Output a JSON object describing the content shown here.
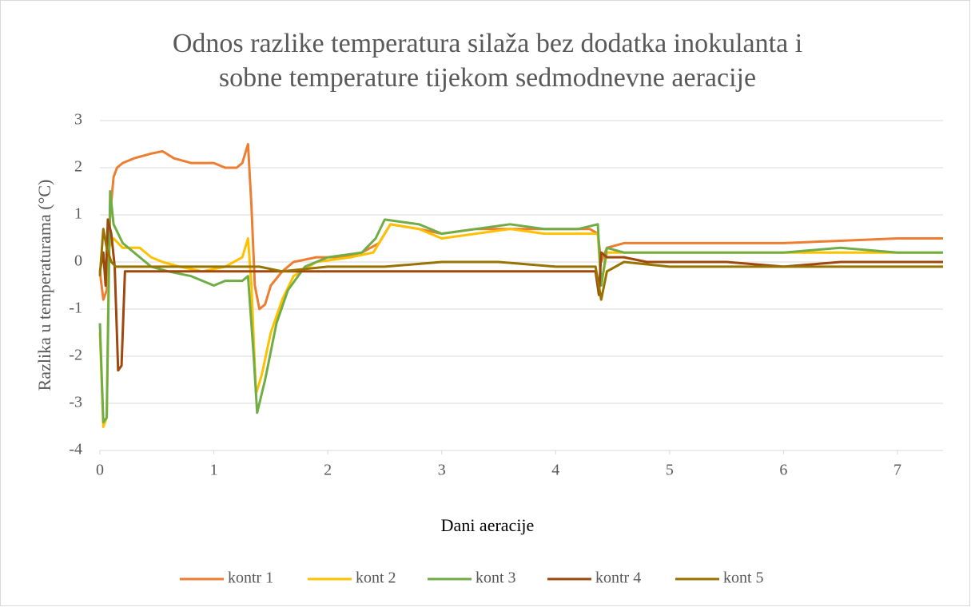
{
  "chart_data": {
    "type": "line",
    "title": [
      "Odnos razlike temperatura silaža bez dodatka inokulanta i",
      "sobne temperature tijekom sedmodnevne aeracije"
    ],
    "x_label": "Dani aeracije",
    "y_label": "Razlika u temperaturama (°C)",
    "xlim": [
      0,
      7.4
    ],
    "xticks": [
      0,
      1,
      2,
      3,
      4,
      5,
      6,
      7
    ],
    "ylim": [
      -4,
      3
    ],
    "yticks": [
      -4,
      -3,
      -2,
      -1,
      0,
      1,
      2,
      3
    ],
    "grid": true,
    "legend": "bottom",
    "series": [
      {
        "name": "kontr 1",
        "color": "#ed7d31",
        "x": [
          0,
          0.03,
          0.06,
          0.09,
          0.12,
          0.15,
          0.2,
          0.3,
          0.45,
          0.55,
          0.65,
          0.8,
          1.0,
          1.1,
          1.2,
          1.25,
          1.3,
          1.33,
          1.36,
          1.4,
          1.45,
          1.5,
          1.6,
          1.7,
          1.9,
          2.1,
          2.3,
          2.45,
          2.55,
          2.8,
          3.0,
          3.3,
          3.6,
          3.9,
          4.1,
          4.3,
          4.37,
          4.4,
          4.45,
          4.6,
          5.0,
          5.5,
          6.0,
          6.5,
          7.0,
          7.4
        ],
        "values": [
          -0.2,
          -0.8,
          -0.6,
          1.0,
          1.8,
          2.0,
          2.1,
          2.2,
          2.3,
          2.35,
          2.2,
          2.1,
          2.1,
          2.0,
          2.0,
          2.1,
          2.5,
          1.2,
          -0.5,
          -1.0,
          -0.9,
          -0.5,
          -0.2,
          0.0,
          0.1,
          0.1,
          0.2,
          0.4,
          0.8,
          0.7,
          0.6,
          0.7,
          0.7,
          0.7,
          0.7,
          0.7,
          0.6,
          0.0,
          0.3,
          0.4,
          0.4,
          0.4,
          0.4,
          0.45,
          0.5,
          0.5
        ]
      },
      {
        "name": "kont 2",
        "color": "#ffc000",
        "x": [
          0,
          0.03,
          0.06,
          0.08,
          0.12,
          0.2,
          0.35,
          0.45,
          0.55,
          0.7,
          0.9,
          1.1,
          1.25,
          1.3,
          1.33,
          1.37,
          1.42,
          1.5,
          1.6,
          1.7,
          1.9,
          2.2,
          2.4,
          2.55,
          2.8,
          3.0,
          3.3,
          3.6,
          3.9,
          4.2,
          4.37,
          4.4,
          4.45,
          4.6,
          5.5,
          6.5,
          7.4
        ],
        "values": [
          -1.5,
          -3.5,
          -3.3,
          0.3,
          0.5,
          0.3,
          0.3,
          0.1,
          0,
          -0.1,
          -0.2,
          -0.1,
          0.1,
          0.5,
          -0.5,
          -2.8,
          -2.4,
          -1.5,
          -0.8,
          -0.3,
          0,
          0.1,
          0.2,
          0.8,
          0.7,
          0.5,
          0.6,
          0.7,
          0.6,
          0.6,
          0.6,
          -0.5,
          0.2,
          0.2,
          0.2,
          0.2,
          0.2
        ]
      },
      {
        "name": "kont 3",
        "color": "#70ad47",
        "x": [
          0,
          0.03,
          0.06,
          0.09,
          0.12,
          0.2,
          0.3,
          0.45,
          0.6,
          0.8,
          0.9,
          1.0,
          1.1,
          1.25,
          1.3,
          1.35,
          1.38,
          1.45,
          1.55,
          1.65,
          1.8,
          2.0,
          2.3,
          2.42,
          2.5,
          2.8,
          3.0,
          3.3,
          3.6,
          3.9,
          4.2,
          4.37,
          4.4,
          4.45,
          4.6,
          5.0,
          5.5,
          6.0,
          6.5,
          7.0,
          7.4
        ],
        "values": [
          -1.3,
          -3.4,
          -3.3,
          1.5,
          0.8,
          0.4,
          0.2,
          -0.1,
          -0.2,
          -0.3,
          -0.4,
          -0.5,
          -0.4,
          -0.4,
          -0.3,
          -2.0,
          -3.2,
          -2.5,
          -1.3,
          -0.6,
          -0.1,
          0.1,
          0.2,
          0.5,
          0.9,
          0.8,
          0.6,
          0.7,
          0.8,
          0.7,
          0.7,
          0.8,
          -0.5,
          0.3,
          0.2,
          0.2,
          0.2,
          0.2,
          0.3,
          0.2,
          0.2
        ]
      },
      {
        "name": "kontr 4",
        "color": "#9e480e",
        "x": [
          0,
          0.03,
          0.05,
          0.07,
          0.1,
          0.13,
          0.16,
          0.19,
          0.22,
          0.4,
          0.8,
          1.2,
          1.4,
          1.6,
          2.0,
          2.5,
          3.0,
          3.5,
          4.0,
          4.35,
          4.38,
          4.4,
          4.45,
          4.6,
          4.8,
          5.5,
          6.0,
          6.5,
          7.0,
          7.4
        ],
        "values": [
          -0.2,
          0.2,
          -0.5,
          0.9,
          0.6,
          -0.1,
          -2.3,
          -2.2,
          -0.2,
          -0.2,
          -0.2,
          -0.2,
          -0.2,
          -0.2,
          -0.2,
          -0.2,
          -0.2,
          -0.2,
          -0.2,
          -0.2,
          -0.7,
          0.2,
          0.1,
          0.1,
          0,
          0,
          -0.1,
          0,
          0,
          0
        ]
      },
      {
        "name": "kont 5",
        "color": "#997300",
        "x": [
          0,
          0.03,
          0.06,
          0.1,
          0.14,
          0.2,
          0.4,
          0.8,
          1.2,
          1.4,
          1.6,
          2.0,
          2.5,
          3.0,
          3.5,
          4.0,
          4.35,
          4.4,
          4.45,
          4.6,
          5.0,
          5.5,
          6.0,
          6.5,
          7.0,
          7.4
        ],
        "values": [
          -0.3,
          0.7,
          0.3,
          0.0,
          -0.1,
          -0.1,
          -0.1,
          -0.1,
          -0.1,
          -0.1,
          -0.2,
          -0.1,
          -0.1,
          0,
          0,
          -0.1,
          -0.1,
          -0.8,
          -0.2,
          0,
          -0.1,
          -0.1,
          -0.1,
          -0.1,
          -0.1,
          -0.1
        ]
      }
    ]
  }
}
